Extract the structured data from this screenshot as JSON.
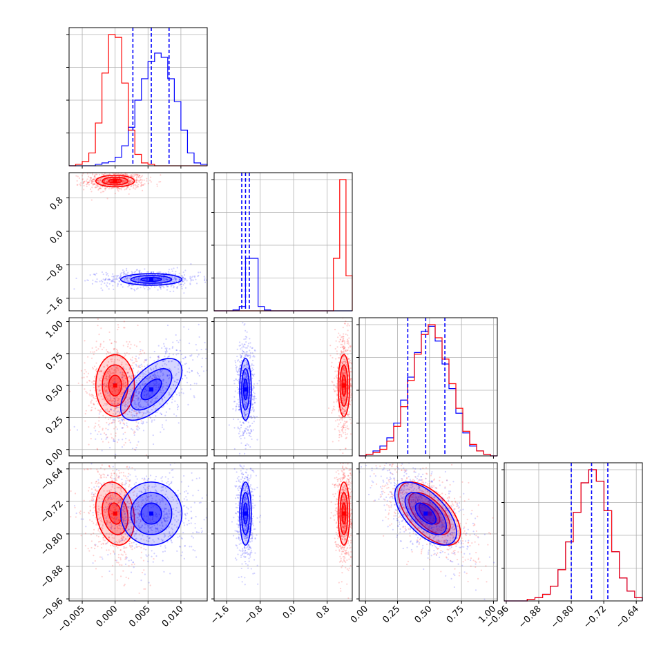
{
  "chart_data": {
    "type": "corner",
    "title": "",
    "colors": {
      "series_a": "#ff0000",
      "series_b": "#0000ff",
      "grid": "#b0b0b0"
    },
    "series": [
      {
        "color": "#ff0000",
        "means": [
          0.0,
          1.2,
          0.5,
          -0.75
        ],
        "sds": [
          0.0017,
          0.08,
          0.14,
          0.045
        ],
        "corr_x0_y3": -0.2,
        "corr_x2_x3": -0.6
      },
      {
        "color": "#0000ff",
        "means": [
          0.0055,
          -1.15,
          0.47,
          -0.75
        ],
        "sds": [
          0.0027,
          0.08,
          0.14,
          0.045
        ],
        "corr_x0_x2": 0.6,
        "corr_x2_x3": -0.6
      }
    ],
    "quantile_lines": [
      [
        0.0027,
        0.0055,
        0.0082
      ],
      [
        -1.24,
        -1.15,
        -1.06
      ],
      [
        0.33,
        0.47,
        0.62
      ],
      [
        -0.8,
        -0.75,
        -0.71
      ]
    ],
    "axes": [
      {
        "lim": [
          -0.007,
          0.014
        ],
        "ticks": [
          -0.005,
          0.0,
          0.005,
          0.01
        ],
        "tick_labels": [
          "−0.005",
          "0.000",
          "0.005",
          "0.010"
        ]
      },
      {
        "lim": [
          -1.9,
          1.4
        ],
        "ticks": [
          -1.6,
          -0.8,
          0.0,
          0.8
        ],
        "tick_labels": [
          "−1.6",
          "−0.8",
          "0.0",
          "0.8"
        ]
      },
      {
        "lim": [
          -0.05,
          1.03
        ],
        "ticks": [
          0.0,
          0.25,
          0.5,
          0.75,
          1.0
        ],
        "tick_labels": [
          "0.00",
          "0.25",
          "0.50",
          "0.75",
          "1.00"
        ]
      },
      {
        "lim": [
          -0.965,
          -0.625
        ],
        "ticks": [
          -0.96,
          -0.88,
          -0.8,
          -0.72,
          -0.64
        ],
        "tick_labels": [
          "−0.96",
          "−0.88",
          "−0.80",
          "−0.72",
          "−0.64"
        ]
      }
    ],
    "histograms": [
      {
        "series": [
          {
            "name": "",
            "values": [
              0,
              1,
              3,
              9,
              30,
              65,
              92,
              90,
              58,
              25,
              8,
              2,
              1,
              0,
              0,
              0,
              0,
              0,
              0,
              0,
              0
            ]
          },
          {
            "name": "",
            "values": [
              0,
              0,
              0,
              0,
              1,
              2,
              3,
              6,
              14,
              27,
              46,
              61,
              73,
              79,
              76,
              61,
              45,
              25,
              9,
              2,
              1
            ]
          }
        ]
      },
      {
        "series": [
          {
            "name": "",
            "values": [
              0,
              0,
              0,
              0,
              0,
              0,
              0,
              0,
              0,
              0,
              0,
              0,
              0,
              0,
              0,
              0,
              0,
              0,
              0,
              60,
              150,
              40
            ]
          },
          {
            "name": "",
            "values": [
              0,
              0,
              0,
              1,
              5,
              60,
              60,
              5,
              1,
              0,
              0,
              0,
              0,
              0,
              0,
              0,
              0,
              0,
              0,
              0,
              0,
              0
            ]
          }
        ]
      },
      {
        "series": [
          {
            "name": "",
            "values": [
              0,
              1,
              2,
              4,
              9,
              18,
              30,
              46,
              62,
              74,
              80,
              72,
              59,
              44,
              29,
              15,
              7,
              3,
              1,
              0
            ]
          },
          {
            "name": "",
            "values": [
              0,
              1,
              3,
              6,
              11,
              20,
              34,
              48,
              63,
              76,
              79,
              70,
              56,
              41,
              26,
              14,
              6,
              3,
              1,
              0
            ]
          }
        ]
      },
      {
        "series": [
          {
            "name": "",
            "values": [
              0,
              0,
              0,
              1,
              2,
              4,
              9,
              19,
              36,
              54,
              72,
              80,
              73,
              55,
              30,
              14,
              6,
              2
            ]
          },
          {
            "name": "",
            "values": [
              0,
              0,
              0,
              1,
              2,
              4,
              9,
              19,
              36,
              54,
              72,
              80,
              73,
              55,
              30,
              14,
              6,
              2
            ]
          }
        ]
      }
    ],
    "pairs": [
      {
        "row": 1,
        "col": 0
      },
      {
        "row": 2,
        "col": 0
      },
      {
        "row": 2,
        "col": 1
      },
      {
        "row": 3,
        "col": 0
      },
      {
        "row": 3,
        "col": 1
      },
      {
        "row": 3,
        "col": 2
      }
    ],
    "contour_levels": [
      0.5,
      1.0,
      1.5
    ],
    "bottom_axis_labels": [
      "",
      "",
      "",
      ""
    ],
    "left_axis_labels": [
      "",
      "",
      "",
      ""
    ]
  }
}
